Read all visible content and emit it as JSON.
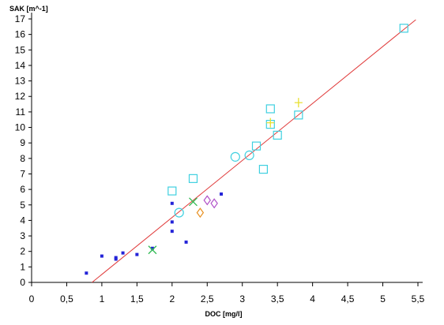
{
  "chart_data": {
    "type": "scatter",
    "title": "",
    "xlabel": "DOC [mg/l]",
    "ylabel": "SAK [m^-1]",
    "xlim": [
      0,
      5.5
    ],
    "ylim": [
      0,
      17
    ],
    "grid": false,
    "x_ticks": [
      "0",
      "0,5",
      "1",
      "1,5",
      "2",
      "2,5",
      "3",
      "3,5",
      "4",
      "4,5",
      "5",
      "5,5"
    ],
    "y_ticks": [
      "0",
      "1",
      "2",
      "3",
      "4",
      "5",
      "6",
      "7",
      "8",
      "9",
      "10",
      "11",
      "12",
      "13",
      "14",
      "15",
      "16",
      "17"
    ],
    "regression_line": {
      "x": [
        0.86,
        5.47
      ],
      "y": [
        0,
        16.95
      ],
      "color": "#e03a3a"
    },
    "series": [
      {
        "marker": "filled-square",
        "color": "#2424d8",
        "points": [
          [
            0.78,
            0.6
          ],
          [
            1.0,
            1.7
          ],
          [
            1.2,
            1.6
          ],
          [
            1.2,
            1.5
          ],
          [
            1.3,
            1.9
          ],
          [
            1.5,
            1.8
          ],
          [
            1.72,
            2.2
          ],
          [
            2.0,
            5.1
          ],
          [
            2.0,
            3.9
          ],
          [
            2.0,
            3.3
          ],
          [
            2.2,
            2.6
          ],
          [
            2.7,
            5.7
          ]
        ]
      },
      {
        "marker": "cross-x",
        "color": "#33bb55",
        "points": [
          [
            1.72,
            2.1
          ],
          [
            2.3,
            5.2
          ]
        ]
      },
      {
        "marker": "open-square",
        "color": "#3fd0e0",
        "points": [
          [
            2.0,
            5.9
          ],
          [
            2.3,
            6.7
          ],
          [
            3.3,
            7.3
          ],
          [
            3.2,
            8.8
          ],
          [
            3.5,
            9.5
          ],
          [
            3.4,
            10.2
          ],
          [
            3.4,
            11.2
          ],
          [
            3.8,
            10.8
          ],
          [
            5.3,
            16.4
          ]
        ]
      },
      {
        "marker": "open-circle",
        "color": "#3fd0e0",
        "points": [
          [
            2.1,
            4.5
          ],
          [
            2.9,
            8.1
          ],
          [
            3.1,
            8.2
          ]
        ]
      },
      {
        "marker": "open-diamond",
        "color": "#b050c8",
        "points": [
          [
            2.5,
            5.3
          ],
          [
            2.6,
            5.1
          ]
        ]
      },
      {
        "marker": "open-diamond",
        "color": "#e89020",
        "points": [
          [
            2.4,
            4.5
          ]
        ]
      },
      {
        "marker": "plus",
        "color": "#e8e030",
        "points": [
          [
            3.4,
            10.3
          ],
          [
            3.8,
            11.6
          ]
        ]
      }
    ]
  }
}
